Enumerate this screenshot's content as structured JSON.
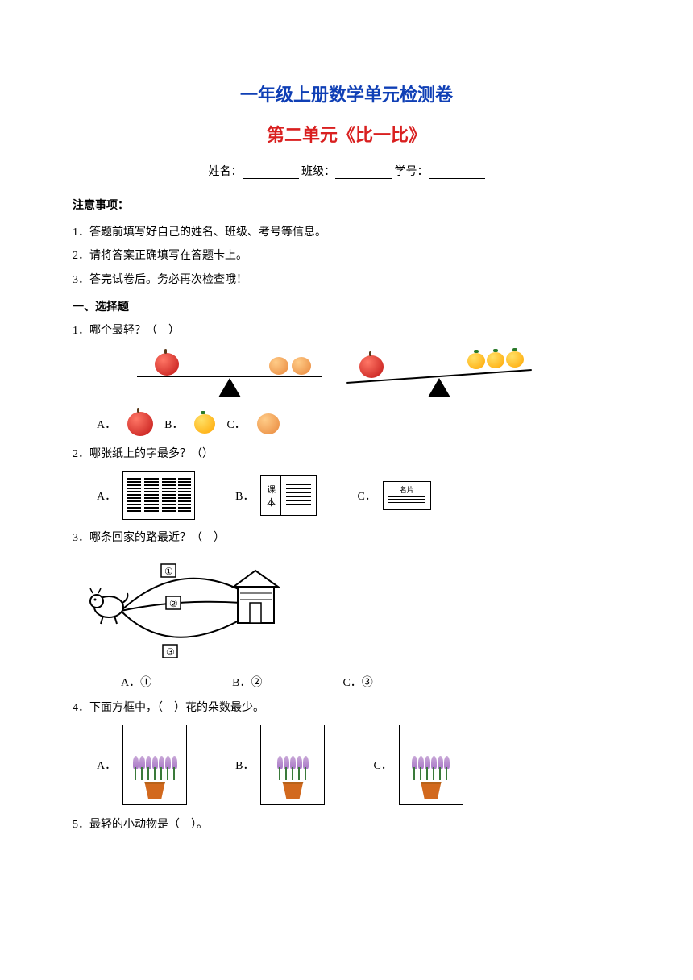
{
  "colors": {
    "title1": "#0f3fb5",
    "title2": "#d92020",
    "text": "#000000"
  },
  "title1": "一年级上册数学单元检测卷",
  "title2": "第二单元《比一比》",
  "info": {
    "name": "姓名：",
    "class": "班级：",
    "id": "学号："
  },
  "notice_title": "注意事项：",
  "notices": [
    "1．答题前填写好自己的姓名、班级、考号等信息。",
    "2．请将答案正确填写在答题卡上。",
    "3．答完试卷后。务必再次检查哦！"
  ],
  "section1": "一、选择题",
  "q1": {
    "text": "1．哪个最轻？（　）",
    "scale1": {
      "tilt": "none",
      "left": "apple",
      "right_items": 2,
      "right_type": "peach"
    },
    "scale2": {
      "tilt": "left-down",
      "left": "apple",
      "right_items": 3,
      "right_type": "orange"
    },
    "options": {
      "a": "A．",
      "b": "B．",
      "c": "C．"
    }
  },
  "q2": {
    "text": "2．哪张纸上的字最多？（）",
    "options": {
      "a": "A．",
      "b": "B．",
      "c": "C．"
    },
    "book_label1": "课",
    "book_label2": "本",
    "card_label": "名片"
  },
  "q3": {
    "text": "3．哪条回家的路最近？（　）",
    "labels": {
      "p1": "①",
      "p2": "②",
      "p3": "③"
    },
    "options": {
      "a": "A．①",
      "b": "B．②",
      "c": "C．③"
    }
  },
  "q4": {
    "text": "4．下面方框中，（　）花的朵数最少。",
    "options": {
      "a": "A．",
      "b": "B．",
      "c": "C．"
    },
    "flower_counts": {
      "a": 7,
      "b": 5,
      "c": 6
    }
  },
  "q5": {
    "text": "5．最轻的小动物是（　）。"
  }
}
